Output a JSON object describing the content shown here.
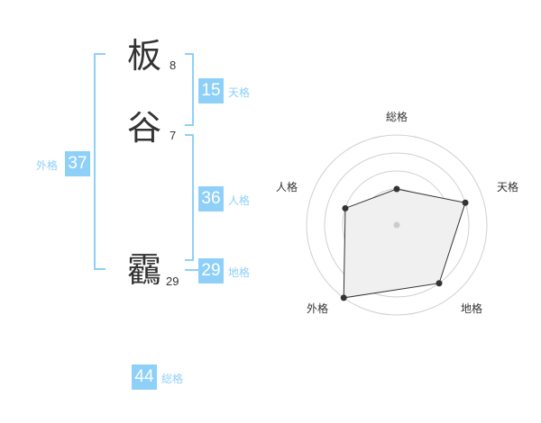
{
  "name": {
    "characters": [
      {
        "char": "板",
        "strokes": "8"
      },
      {
        "char": "谷",
        "strokes": "7"
      },
      {
        "char": "靏",
        "strokes": "29"
      }
    ]
  },
  "fortunes": {
    "tenkaku": {
      "label": "天格",
      "value": "15"
    },
    "jinkaku": {
      "label": "人格",
      "value": "36"
    },
    "chikaku": {
      "label": "地格",
      "value": "29"
    },
    "gaikaku": {
      "label": "外格",
      "value": "37"
    },
    "soukaku": {
      "label": "総格",
      "value": "44"
    }
  },
  "colors": {
    "accent": "#8fd0f8",
    "text": "#333333",
    "radar_fill": "#f0f0f0",
    "radar_ring": "#d0d0d0"
  },
  "chart_data": {
    "type": "radar",
    "axes": [
      "総格",
      "天格",
      "地格",
      "外格",
      "人格"
    ],
    "values": [
      2,
      4,
      4,
      5,
      3
    ],
    "range": [
      0,
      5
    ],
    "rings": 5
  }
}
